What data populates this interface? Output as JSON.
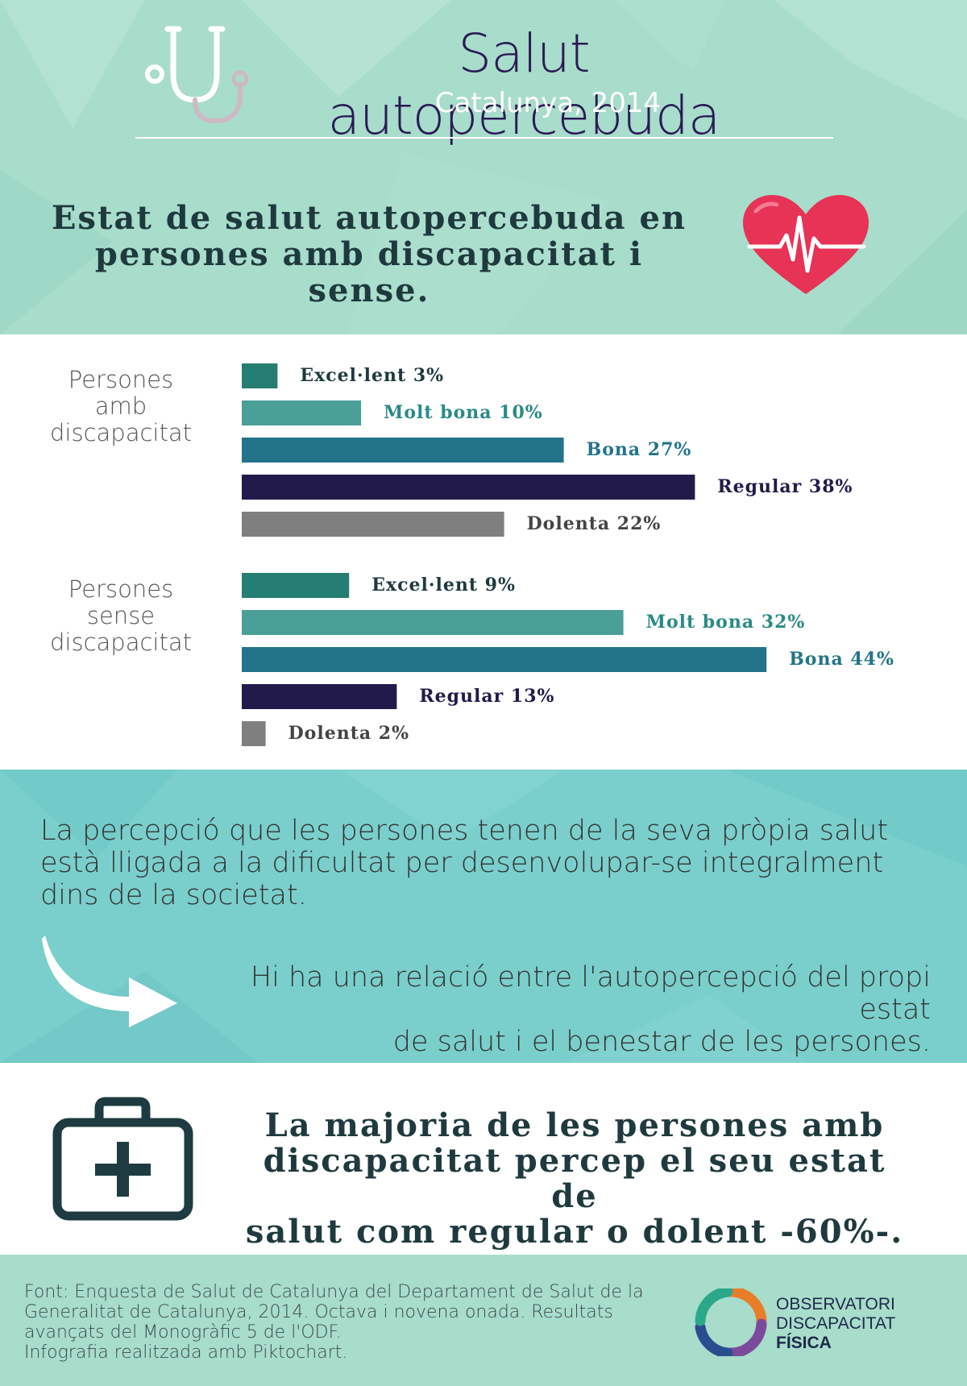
{
  "header": {
    "title": "Salut autopercebuda",
    "subtitle": "Catalunya, 2014",
    "heading_line1": "Estat de salut autopercebuda en",
    "heading_line2": "persones amb discapacitat i sense."
  },
  "icons": {
    "header": "stethoscope-icon",
    "heading": "heart-pulse-icon",
    "band": "curved-arrow-icon",
    "conclusion": "first-aid-kit-icon"
  },
  "chart_data": {
    "type": "bar",
    "orientation": "horizontal",
    "unit": "%",
    "groups": [
      {
        "label_lines": [
          "Persones",
          "amb",
          "discapacitat"
        ],
        "bars": [
          {
            "category": "Excel·lent",
            "value": 3,
            "label": "3%",
            "color": "#267d72"
          },
          {
            "category": "Molt bona",
            "value": 10,
            "label": "10%",
            "color": "#4a9f97"
          },
          {
            "category": "Bona",
            "value": 27,
            "label": "27%",
            "color": "#23748a"
          },
          {
            "category": "Regular",
            "value": 38,
            "label": "38%",
            "color": "#221a4a"
          },
          {
            "category": "Dolenta",
            "value": 22,
            "label": "22%",
            "color": "#7f7f7f"
          }
        ]
      },
      {
        "label_lines": [
          "Persones",
          "sense",
          "discapacitat"
        ],
        "bars": [
          {
            "category": "Excel·lent",
            "value": 9,
            "label": "9%",
            "color": "#267d72"
          },
          {
            "category": "Molt bona",
            "value": 32,
            "label": "32%",
            "color": "#4a9f97"
          },
          {
            "category": "Bona",
            "value": 44,
            "label": "44%",
            "color": "#23748a"
          },
          {
            "category": "Regular",
            "value": 13,
            "label": "13%",
            "color": "#221a4a"
          },
          {
            "category": "Dolenta",
            "value": 2,
            "label": "2%",
            "color": "#7f7f7f"
          }
        ]
      }
    ]
  },
  "band": {
    "text1_lines": [
      "La percepció que les persones tenen de la seva pròpia salut",
      "està lligada a la dificultat per desenvolupar-se integralment",
      "dins de la societat."
    ],
    "text2_lines": [
      "Hi ha una relació entre l'autopercepció del propi estat",
      "de salut i el benestar de les persones."
    ]
  },
  "conclusion": {
    "lines": [
      "La majoria de les persones amb",
      "discapacitat percep el seu estat de",
      "salut com regular o dolent -60%-."
    ]
  },
  "footer": {
    "source_lines": [
      "Font: Enquesta de Salut de Catalunya del Departament de Salut de la",
      "Generalitat de Catalunya, 2014. Octava i novena onada. Resultats",
      "avançats del Monogràfic 5 de l'ODF.",
      "Infografia realitzada amb Piktochart."
    ],
    "logo_line1": "OBSERVATORI",
    "logo_line2": "DISCAPACITAT",
    "logo_line3": "FÍSICA"
  }
}
